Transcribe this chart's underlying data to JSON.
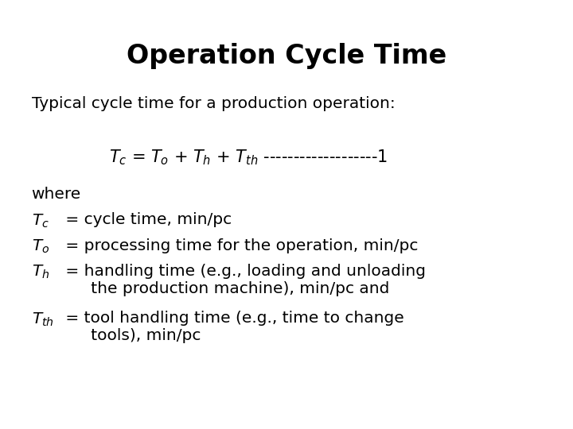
{
  "title": "Operation Cycle Time",
  "background_color": "#ffffff",
  "text_color": "#000000",
  "title_fontsize": 24,
  "body_fontsize": 14.5,
  "subtitle": "Typical cycle time for a production operation:",
  "equation": "$\\mathit{T_c}$ = $\\mathit{T_o}$ + $\\mathit{T_h}$ + $\\mathit{T_{th}}$ -------------------1",
  "where": "where",
  "line1_math": "$\\mathit{T_c}$",
  "line1_text": " = cycle time, min/pc",
  "line2_math": "$\\mathit{T_o}$",
  "line2_text": " = processing time for the operation, min/pc",
  "line3_math": "$\\mathit{T_h}$",
  "line3_text": " = handling time (e.g., loading and unloading\n      the production machine), min/pc and",
  "line4_math": "$\\mathit{T_{th}}$",
  "line4_text": " = tool handling time (e.g., time to change\n      tools), min/pc",
  "fig_width": 7.2,
  "fig_height": 5.4,
  "dpi": 100
}
